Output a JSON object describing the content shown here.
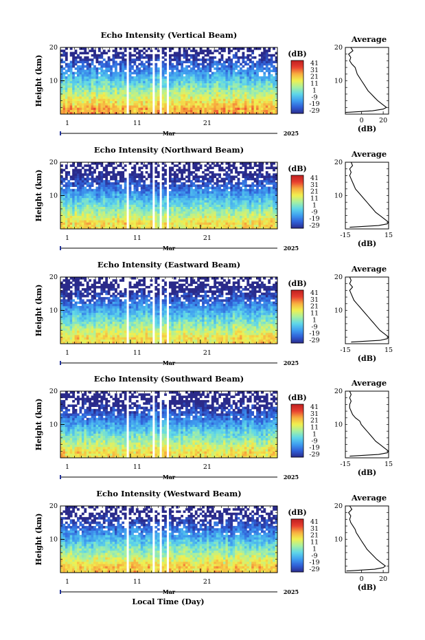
{
  "figure": {
    "bottom_xlabel": "Local Time (Day)",
    "month_label": "Mar",
    "year_label": "2025",
    "colorbar_unit": "(dB)",
    "colorbar_ticks": [
      "41",
      "31",
      "21",
      "11",
      "1",
      "-9",
      "-19",
      "-29"
    ],
    "colorbar_colors": [
      "#2a2a8a",
      "#3060d8",
      "#40a0f0",
      "#60d8e8",
      "#a8f0a0",
      "#f0f050",
      "#f8b040",
      "#e84030",
      "#c02020"
    ],
    "missing_data_color": "#ffffff"
  },
  "chart_data": [
    {
      "type": "heatmap",
      "title": "Echo Intensity (Vertical Beam)",
      "ylabel": "Height (km)",
      "ylim": [
        0,
        20
      ],
      "yticks": [
        "10",
        "20"
      ],
      "xlim": [
        1,
        32
      ],
      "xticks": [
        "1",
        "11",
        "21"
      ],
      "xlabel": "Mar",
      "year": "2025",
      "colorbar": {
        "unit": "(dB)",
        "ticks": [
          "41",
          "31",
          "21",
          "11",
          "1",
          "-9",
          "-19",
          "-29"
        ]
      },
      "missing_days": [
        [
          10.6,
          10.9
        ],
        [
          14.3,
          14.5
        ],
        [
          15.3,
          15.6
        ],
        [
          16.2,
          16.5
        ]
      ],
      "profile": {
        "title": "Average",
        "xlabel": "(dB)",
        "xticks": [
          "0",
          "20"
        ],
        "xlim": [
          -15,
          25
        ],
        "height_km": [
          0.5,
          1,
          1.5,
          2,
          3,
          4,
          5,
          6,
          7,
          8,
          9,
          10,
          11,
          12,
          13,
          14,
          15,
          16,
          17,
          18,
          19,
          20
        ],
        "avg_db": [
          -15,
          10,
          20,
          23,
          19,
          15,
          12,
          9,
          6,
          4,
          2,
          0,
          -2,
          -4,
          -5,
          -6,
          -9,
          -11,
          -10,
          -12,
          -8,
          -10
        ]
      }
    },
    {
      "type": "heatmap",
      "title": "Echo Intensity (Northward Beam)",
      "ylabel": "Height (km)",
      "ylim": [
        0,
        20
      ],
      "yticks": [
        "10",
        "20"
      ],
      "xlim": [
        1,
        32
      ],
      "xticks": [
        "1",
        "11",
        "21"
      ],
      "xlabel": "Mar",
      "year": "2025",
      "colorbar": {
        "unit": "(dB)",
        "ticks": [
          "41",
          "31",
          "21",
          "11",
          "1",
          "-9",
          "-19",
          "-29"
        ]
      },
      "missing_days": [
        [
          10.6,
          10.9
        ],
        [
          14.3,
          14.5
        ],
        [
          15.3,
          15.6
        ],
        [
          16.2,
          16.5
        ]
      ],
      "profile": {
        "title": "Average",
        "xlabel": "(dB)",
        "xticks": [
          "-15",
          "15"
        ],
        "xlim": [
          -15,
          15
        ],
        "height_km": [
          0.5,
          1,
          1.5,
          2,
          3,
          4,
          5,
          6,
          7,
          8,
          9,
          10,
          11,
          12,
          13,
          14,
          15,
          16,
          17,
          18,
          19,
          20
        ],
        "avg_db": [
          -12,
          8,
          14,
          15,
          12,
          9,
          6,
          4,
          2,
          0,
          -2,
          -4,
          -6,
          -8,
          -9,
          -10,
          -11,
          -12,
          -11,
          -12,
          -10,
          -11
        ]
      }
    },
    {
      "type": "heatmap",
      "title": "Echo Intensity (Eastward Beam)",
      "ylabel": "Height (km)",
      "ylim": [
        0,
        20
      ],
      "yticks": [
        "10",
        "20"
      ],
      "xlim": [
        1,
        32
      ],
      "xticks": [
        "1",
        "11",
        "21"
      ],
      "xlabel": "Mar",
      "year": "2025",
      "colorbar": {
        "unit": "(dB)",
        "ticks": [
          "41",
          "31",
          "21",
          "11",
          "1",
          "-9",
          "-19",
          "-29"
        ]
      },
      "missing_days": [
        [
          10.6,
          10.9
        ],
        [
          14.3,
          14.5
        ],
        [
          15.3,
          15.6
        ],
        [
          16.2,
          16.5
        ]
      ],
      "profile": {
        "title": "Average",
        "xlabel": "(dB)",
        "xticks": [
          "-15",
          "15"
        ],
        "xlim": [
          -15,
          15
        ],
        "height_km": [
          0.5,
          1,
          1.5,
          2,
          3,
          4,
          5,
          6,
          7,
          8,
          9,
          10,
          11,
          12,
          13,
          14,
          15,
          16,
          17,
          18,
          19,
          20
        ],
        "avg_db": [
          -11,
          9,
          14,
          15,
          12,
          9,
          7,
          5,
          3,
          1,
          -1,
          -3,
          -5,
          -7,
          -9,
          -10,
          -11,
          -12,
          -10,
          -12,
          -11,
          -12
        ]
      }
    },
    {
      "type": "heatmap",
      "title": "Echo Intensity (Southward Beam)",
      "ylabel": "Height (km)",
      "ylim": [
        0,
        20
      ],
      "yticks": [
        "10",
        "20"
      ],
      "xlim": [
        1,
        32
      ],
      "xticks": [
        "1",
        "11",
        "21"
      ],
      "xlabel": "Mar",
      "year": "2025",
      "colorbar": {
        "unit": "(dB)",
        "ticks": [
          "41",
          "31",
          "21",
          "11",
          "1",
          "-9",
          "-19",
          "-29"
        ]
      },
      "missing_days": [
        [
          10.6,
          10.9
        ],
        [
          14.3,
          14.5
        ],
        [
          15.3,
          15.6
        ],
        [
          16.2,
          16.5
        ]
      ],
      "profile": {
        "title": "Average",
        "xlabel": "(dB)",
        "xticks": [
          "-15",
          "15"
        ],
        "xlim": [
          -15,
          15
        ],
        "height_km": [
          0.5,
          1,
          1.5,
          2,
          3,
          4,
          5,
          6,
          7,
          8,
          9,
          10,
          11,
          12,
          13,
          14,
          15,
          16,
          17,
          18,
          19,
          20
        ],
        "avg_db": [
          -12,
          8,
          14,
          15,
          12,
          9,
          6,
          4,
          2,
          0,
          -2,
          -4,
          -5,
          -8,
          -10,
          -11,
          -12,
          -12,
          -11,
          -12,
          -11,
          -12
        ]
      }
    },
    {
      "type": "heatmap",
      "title": "Echo Intensity (Westward Beam)",
      "ylabel": "Height (km)",
      "ylim": [
        0,
        20
      ],
      "yticks": [
        "10",
        "20"
      ],
      "xlim": [
        1,
        32
      ],
      "xticks": [
        "1",
        "11",
        "21"
      ],
      "xlabel": "Mar",
      "year": "2025",
      "colorbar": {
        "unit": "(dB)",
        "ticks": [
          "41",
          "31",
          "21",
          "11",
          "1",
          "-9",
          "-19",
          "-29"
        ]
      },
      "missing_days": [
        [
          10.6,
          10.9
        ],
        [
          14.3,
          14.5
        ],
        [
          15.3,
          15.6
        ],
        [
          16.2,
          16.5
        ]
      ],
      "profile": {
        "title": "Average",
        "xlabel": "(dB)",
        "xticks": [
          "0",
          "20"
        ],
        "xlim": [
          -15,
          25
        ],
        "height_km": [
          0.5,
          1,
          1.5,
          2,
          3,
          4,
          5,
          6,
          7,
          8,
          9,
          10,
          11,
          12,
          13,
          14,
          15,
          16,
          17,
          18,
          19,
          20
        ],
        "avg_db": [
          -14,
          12,
          20,
          22,
          18,
          14,
          11,
          8,
          5,
          3,
          1,
          -1,
          -3,
          -5,
          -6,
          -8,
          -10,
          -11,
          -10,
          -12,
          -9,
          -11
        ]
      }
    }
  ]
}
